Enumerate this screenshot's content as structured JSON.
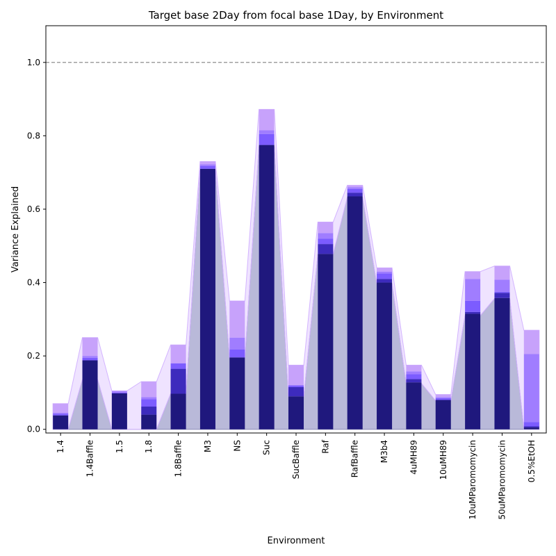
{
  "chart_data": {
    "type": "bar",
    "title": "Target base 2Day from focal base 1Day, by Environment",
    "xlabel": "Environment",
    "ylabel": "Variance Explained",
    "ylim": [
      -0.01,
      1.1
    ],
    "yticks": [
      0.0,
      0.2,
      0.4,
      0.6,
      0.8,
      1.0
    ],
    "ytick_labels": [
      "0.0",
      "0.2",
      "0.4",
      "0.6",
      "0.8",
      "1.0"
    ],
    "reference_line": 1.0,
    "grid": false,
    "legend": "none",
    "categories": [
      "1.4",
      "1.4Baffle",
      "1.5",
      "1.8",
      "1.8Baffle",
      "M3",
      "NS",
      "Suc",
      "SucBaffle",
      "Raf",
      "RafBaffle",
      "M3b4",
      "4uMH89",
      "10uMH89",
      "10uMParomomycin",
      "50uMParomomycin",
      "0.5%EtOH"
    ],
    "baseline_values": [
      0.0,
      0.135,
      0.0,
      0.0,
      0.097,
      0.705,
      0.193,
      0.77,
      0.088,
      0.477,
      0.632,
      0.397,
      0.125,
      0.078,
      0.31,
      0.356,
      0.0
    ],
    "series": [
      {
        "values": [
          0.038,
          0.188,
          0.098,
          0.04,
          0.097,
          0.71,
          0.196,
          0.775,
          0.09,
          0.478,
          0.635,
          0.4,
          0.128,
          0.08,
          0.315,
          0.358,
          0.005
        ]
      },
      {
        "values": [
          0.038,
          0.188,
          0.098,
          0.062,
          0.165,
          0.71,
          0.196,
          0.775,
          0.115,
          0.505,
          0.645,
          0.41,
          0.137,
          0.08,
          0.32,
          0.372,
          0.008
        ]
      },
      {
        "values": [
          0.042,
          0.195,
          0.1,
          0.082,
          0.18,
          0.718,
          0.218,
          0.805,
          0.12,
          0.52,
          0.655,
          0.425,
          0.15,
          0.085,
          0.35,
          0.375,
          0.02
        ]
      },
      {
        "values": [
          0.045,
          0.2,
          0.104,
          0.088,
          0.18,
          0.722,
          0.25,
          0.815,
          0.12,
          0.535,
          0.66,
          0.43,
          0.158,
          0.088,
          0.41,
          0.408,
          0.205
        ]
      },
      {
        "values": [
          0.07,
          0.25,
          0.105,
          0.13,
          0.23,
          0.73,
          0.35,
          0.872,
          0.175,
          0.565,
          0.665,
          0.44,
          0.175,
          0.095,
          0.43,
          0.445,
          0.27
        ]
      }
    ],
    "colors": {
      "baseline_fill": "#b9b9d9",
      "layers": [
        "#1f187d",
        "#3d2bbd",
        "#7c5cff",
        "#a07dff",
        "#c7a2fb"
      ],
      "envelope": "#e2ccff",
      "reference_line": "#808080"
    }
  }
}
